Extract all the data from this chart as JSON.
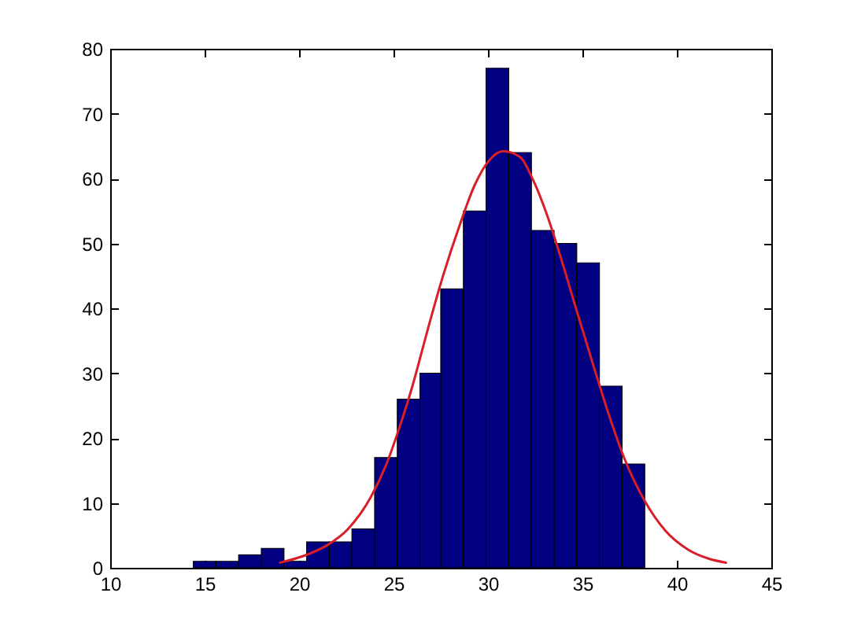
{
  "chart_data": {
    "type": "histogram",
    "series": [
      {
        "color": "#000080",
        "bins": [
          14.4,
          15.6,
          16.8,
          18.0,
          19.2,
          20.4,
          21.6,
          22.8,
          24.0,
          25.2,
          26.4,
          27.5,
          28.7,
          29.9,
          31.1,
          32.3,
          33.5,
          34.7,
          35.9,
          37.1,
          38.3
        ],
        "values": [
          1,
          1,
          2,
          3,
          1,
          4,
          4,
          6,
          17,
          26,
          30,
          43,
          55,
          77,
          64,
          52,
          50,
          47,
          28,
          16
        ]
      },
      {
        "type": "line",
        "color": "#d81e28",
        "x": [
          19.0,
          20.4,
          21.5,
          22.6,
          23.8,
          24.6,
          25.3,
          26.0,
          26.8,
          27.6,
          28.5,
          29.3,
          30.1,
          30.8,
          31.7,
          32.4,
          33.1,
          33.9,
          34.7,
          35.6,
          36.4,
          37.2,
          38.3,
          39.4,
          40.6,
          41.7,
          42.6
        ],
        "values": [
          0.8,
          2.0,
          3.5,
          6.0,
          10.9,
          15.8,
          21.5,
          28.0,
          36.6,
          44.8,
          52.8,
          59.0,
          62.9,
          64.2,
          63.3,
          59.7,
          54.6,
          47.4,
          39.6,
          31.0,
          23.6,
          17.0,
          10.3,
          5.7,
          2.8,
          1.4,
          0.8
        ]
      }
    ],
    "xlim": [
      10,
      45
    ],
    "ylim": [
      0,
      80
    ],
    "xticks": [
      10,
      15,
      20,
      25,
      30,
      35,
      40,
      45
    ],
    "yticks": [
      0,
      10,
      20,
      30,
      40,
      50,
      60,
      70,
      80
    ]
  }
}
